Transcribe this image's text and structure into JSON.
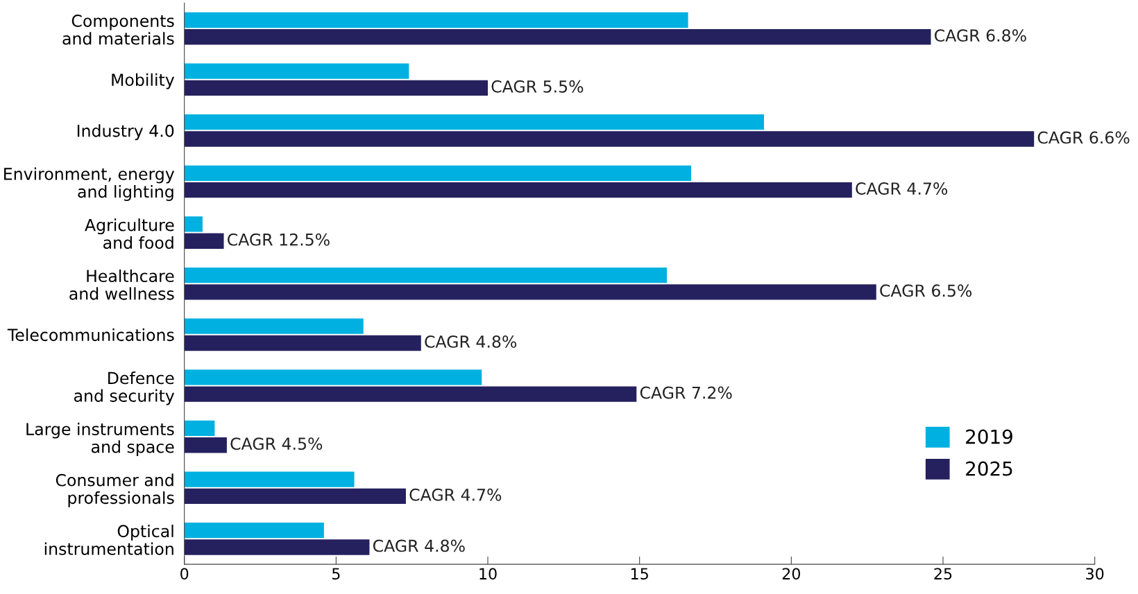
{
  "chart_data": {
    "type": "bar",
    "orientation": "horizontal",
    "categories": [
      "Components\nand materials",
      "Mobility",
      "Industry 4.0",
      "Environment, energy\nand lighting",
      "Agriculture\nand food",
      "Healthcare\nand wellness",
      "Telecommunications",
      "Defence\nand security",
      "Large instruments\nand space",
      "Consumer and\nprofessionals",
      "Optical\ninstrumentation"
    ],
    "series": [
      {
        "name": "2019",
        "color": "#00b0e0",
        "values": [
          16.6,
          7.4,
          19.1,
          16.7,
          0.6,
          15.9,
          5.9,
          9.8,
          1.0,
          5.6,
          4.6
        ]
      },
      {
        "name": "2025",
        "color": "#25215e",
        "values": [
          24.6,
          10.0,
          28.0,
          22.0,
          1.3,
          22.8,
          7.8,
          14.9,
          1.4,
          7.3,
          6.1
        ],
        "value_labels": [
          "CAGR 6.8%",
          "CAGR 5.5%",
          "CAGR 6.6%",
          "CAGR 4.7%",
          "CAGR 12.5%",
          "CAGR 6.5%",
          "CAGR 4.8%",
          "CAGR 7.2%",
          "CAGR 4.5%",
          "CAGR 4.7%",
          "CAGR 4.8%"
        ]
      }
    ],
    "xlim": [
      0,
      30
    ],
    "xticks": [
      0,
      5,
      10,
      15,
      20,
      25,
      30
    ],
    "grid": false,
    "legend": "bottom right"
  }
}
